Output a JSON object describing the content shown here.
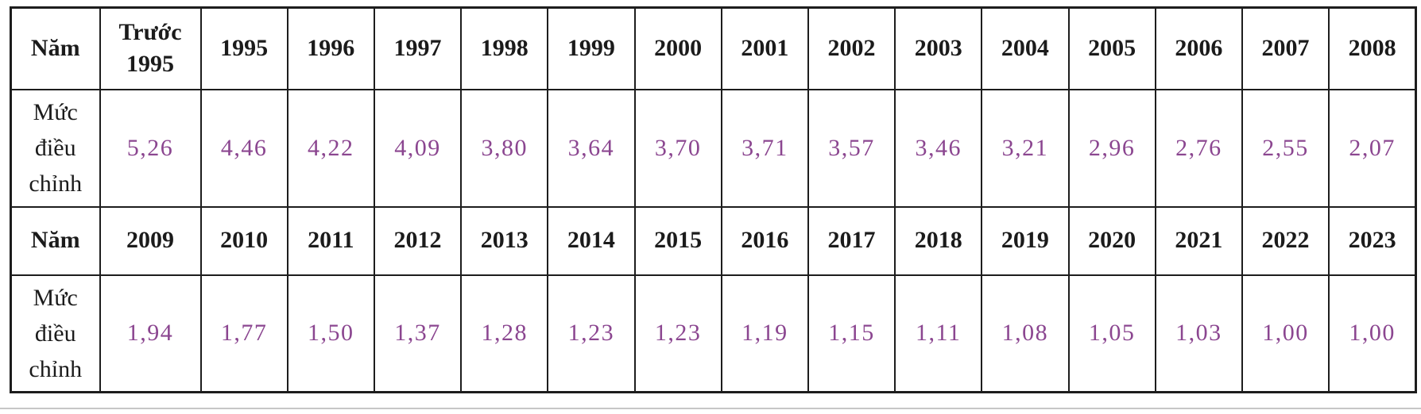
{
  "colors": {
    "background": "#ffffff",
    "border": "#1d1d1d",
    "header_text": "#1b1b1b",
    "value_text": "#8b4690",
    "page_edge_line": "#c6c6c6"
  },
  "table": {
    "rows": [
      {
        "kind": "year",
        "label": "Năm",
        "cells": [
          "Trước 1995",
          "1995",
          "1996",
          "1997",
          "1998",
          "1999",
          "2000",
          "2001",
          "2002",
          "2003",
          "2004",
          "2005",
          "2006",
          "2007",
          "2008"
        ]
      },
      {
        "kind": "value",
        "label": "Mức điều chỉnh",
        "cells": [
          "5,26",
          "4,46",
          "4,22",
          "4,09",
          "3,80",
          "3,64",
          "3,70",
          "3,71",
          "3,57",
          "3,46",
          "3,21",
          "2,96",
          "2,76",
          "2,55",
          "2,07"
        ]
      },
      {
        "kind": "year",
        "label": "Năm",
        "cells": [
          "2009",
          "2010",
          "2011",
          "2012",
          "2013",
          "2014",
          "2015",
          "2016",
          "2017",
          "2018",
          "2019",
          "2020",
          "2021",
          "2022",
          "2023"
        ]
      },
      {
        "kind": "value",
        "label": "Mức điều chỉnh",
        "cells": [
          "1,94",
          "1,77",
          "1,50",
          "1,37",
          "1,28",
          "1,23",
          "1,23",
          "1,19",
          "1,15",
          "1,11",
          "1,08",
          "1,05",
          "1,03",
          "1,00",
          "1,00"
        ]
      }
    ]
  }
}
